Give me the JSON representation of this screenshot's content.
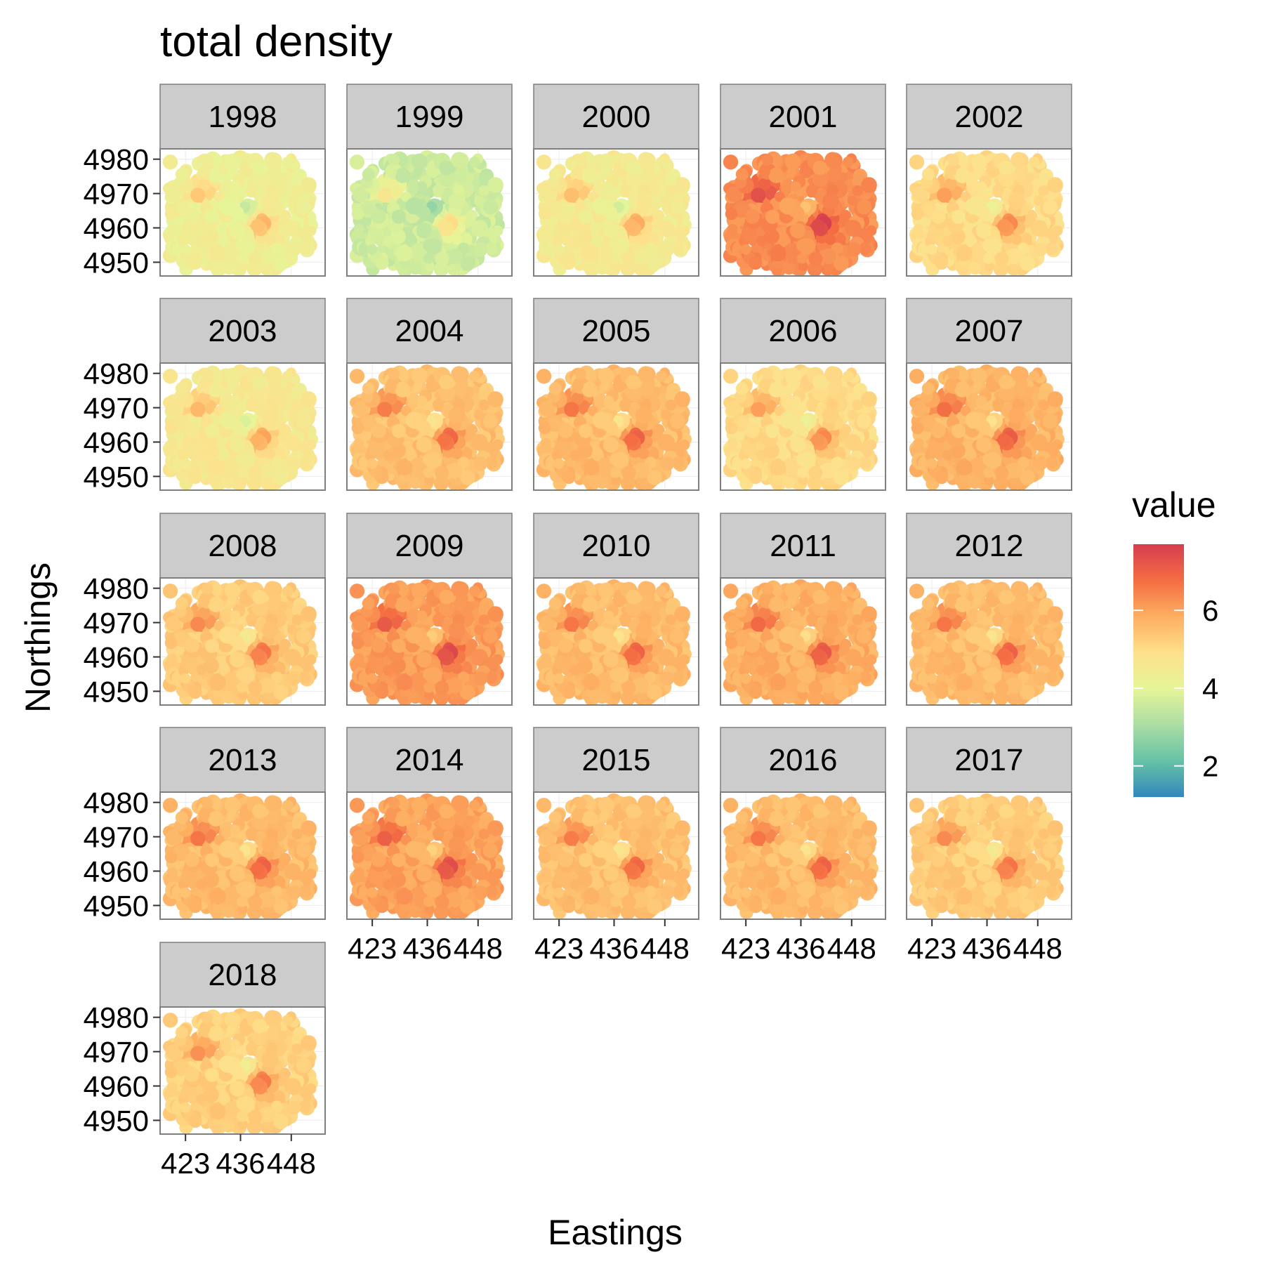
{
  "chart_data": {
    "type": "heatmap",
    "title": "total density",
    "xlabel": "Eastings",
    "ylabel": "Northings",
    "facet_var": "year",
    "panels": [
      "1998",
      "1999",
      "2000",
      "2001",
      "2002",
      "2003",
      "2004",
      "2005",
      "2006",
      "2007",
      "2008",
      "2009",
      "2010",
      "2011",
      "2012",
      "2013",
      "2014",
      "2015",
      "2016",
      "2017",
      "2018"
    ],
    "panel_mean_values": [
      4.3,
      3.6,
      4.5,
      6.3,
      5.0,
      4.6,
      5.5,
      5.6,
      5.0,
      5.7,
      5.3,
      6.1,
      5.6,
      5.8,
      5.6,
      5.6,
      6.0,
      5.5,
      5.6,
      5.3,
      5.2
    ],
    "x_ticks": [
      423,
      436,
      448
    ],
    "x_tick_labels": [
      "423",
      "436",
      "448"
    ],
    "y_ticks": [
      4950,
      4960,
      4970,
      4980
    ],
    "y_tick_labels": [
      "4950",
      "4960",
      "4970",
      "4980"
    ],
    "xlim": [
      417,
      456
    ],
    "ylim": [
      4946,
      4983
    ],
    "grid": true,
    "legend": {
      "title": "value",
      "position": "right",
      "range": [
        1.2,
        7.7
      ],
      "breaks": [
        2,
        4,
        6
      ],
      "break_labels": [
        "2",
        "4",
        "6"
      ],
      "palette": [
        "#3288bd",
        "#66c2a5",
        "#abdda4",
        "#e6f598",
        "#fee08b",
        "#fdae61",
        "#f46d43",
        "#d53e4f"
      ]
    },
    "colors": {
      "strip_bg": "#cccccc",
      "panel_border": "#7f7f7f",
      "grid": "#ebebeb"
    }
  }
}
